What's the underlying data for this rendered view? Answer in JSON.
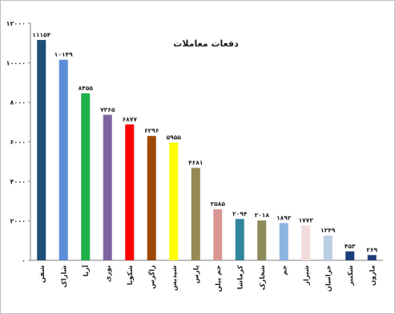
{
  "chart_data": {
    "type": "bar",
    "title": "دفعات معاملات",
    "ylim": [
      0,
      12000
    ],
    "y_ticks": [
      0,
      2000,
      4000,
      6000,
      8000,
      10000,
      12000
    ],
    "y_tick_labels": [
      "۰",
      "۲۰۰۰",
      "۴۰۰۰",
      "۶۰۰۰",
      "۸۰۰۰",
      "۱۰۰۰۰",
      "۱۲۰۰۰"
    ],
    "grid": false,
    "legend": "none",
    "categories": [
      "شفن",
      "شاراک",
      "آریا",
      "نوری",
      "شکویا",
      "زاگرس",
      "شپدیس",
      "پارس",
      "جم پیلن",
      "کرماشا",
      "شخارک",
      "جم",
      "شیراز",
      "خراسان",
      "شکبیر",
      "مارون"
    ],
    "values": [
      11154,
      10149,
      8455,
      7365,
      6877,
      6296,
      5955,
      4681,
      2585,
      2094,
      2018,
      1892,
      1773,
      1249,
      453,
      269
    ],
    "value_labels": [
      "۱۱۱۵۴",
      "۱۰۱۴۹",
      "۸۴۵۵",
      "۷۳۶۵",
      "۶۸۷۷",
      "۶۲۹۶",
      "۵۹۵۵",
      "۴۶۸۱",
      "۲۵۸۵",
      "۲۰۹۴",
      "۲۰۱۸",
      "۱۸۹۲",
      "۱۷۷۳",
      "۱۲۴۹",
      "۴۵۳",
      "۲۶۹"
    ],
    "colors": [
      "#1f4e79",
      "#5b8ed6",
      "#1fb14a",
      "#8064a2",
      "#ff0000",
      "#9c4a06",
      "#ffff00",
      "#948a54",
      "#d99694",
      "#31859c",
      "#8e8a5a",
      "#8eb4e3",
      "#f2dcdb",
      "#b9cde5",
      "#1f3f7a",
      "#1f3f7a"
    ]
  }
}
